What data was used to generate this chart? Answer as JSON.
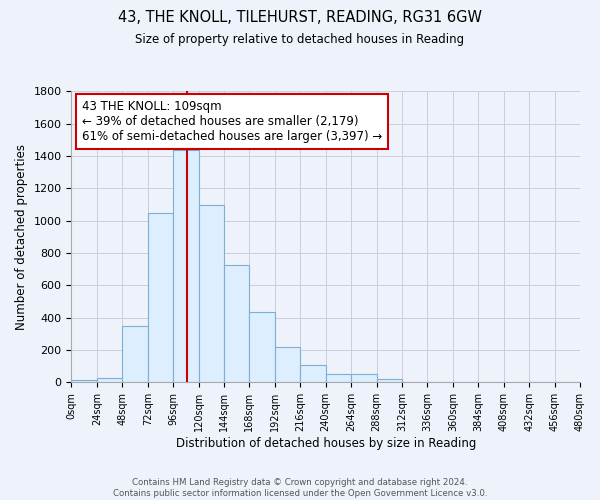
{
  "title": "43, THE KNOLL, TILEHURST, READING, RG31 6GW",
  "subtitle": "Size of property relative to detached houses in Reading",
  "xlabel": "Distribution of detached houses by size in Reading",
  "ylabel": "Number of detached properties",
  "bar_color": "#ddeeff",
  "bar_edge_color": "#7bafd4",
  "bin_width": 24,
  "bin_starts": [
    0,
    24,
    48,
    72,
    96,
    120,
    144,
    168,
    192,
    216,
    240,
    264,
    288,
    312,
    336,
    360,
    384,
    408,
    432,
    456
  ],
  "counts": [
    15,
    30,
    350,
    1050,
    1440,
    1095,
    725,
    435,
    220,
    105,
    55,
    50,
    20,
    5,
    2,
    1,
    0,
    0,
    0,
    0
  ],
  "property_size": 109,
  "vline_color": "#cc0000",
  "annotation_line1": "43 THE KNOLL: 109sqm",
  "annotation_line2": "← 39% of detached houses are smaller (2,179)",
  "annotation_line3": "61% of semi-detached houses are larger (3,397) →",
  "annotation_box_color": "#ffffff",
  "annotation_box_edge": "#cc0000",
  "ylim": [
    0,
    1800
  ],
  "yticks": [
    0,
    200,
    400,
    600,
    800,
    1000,
    1200,
    1400,
    1600,
    1800
  ],
  "footer_line1": "Contains HM Land Registry data © Crown copyright and database right 2024.",
  "footer_line2": "Contains public sector information licensed under the Open Government Licence v3.0.",
  "background_color": "#eef2fb",
  "grid_color": "#ccccdd"
}
